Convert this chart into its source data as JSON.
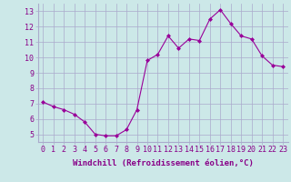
{
  "x": [
    0,
    1,
    2,
    3,
    4,
    5,
    6,
    7,
    8,
    9,
    10,
    11,
    12,
    13,
    14,
    15,
    16,
    17,
    18,
    19,
    20,
    21,
    22,
    23
  ],
  "y": [
    7.1,
    6.8,
    6.6,
    6.3,
    5.8,
    5.0,
    4.9,
    4.9,
    5.3,
    6.6,
    9.8,
    10.2,
    11.4,
    10.6,
    11.2,
    11.1,
    12.5,
    13.1,
    12.2,
    11.4,
    11.2,
    10.1,
    9.5,
    9.4
  ],
  "line_color": "#990099",
  "marker": "D",
  "marker_size": 2.0,
  "bg_color": "#cce8e8",
  "grid_color": "#aaaacc",
  "xlabel": "Windchill (Refroidissement éolien,°C)",
  "ylabel_ticks": [
    5,
    6,
    7,
    8,
    9,
    10,
    11,
    12,
    13
  ],
  "xtick_labels": [
    "0",
    "1",
    "2",
    "3",
    "4",
    "5",
    "6",
    "7",
    "8",
    "9",
    "10",
    "11",
    "12",
    "13",
    "14",
    "15",
    "16",
    "17",
    "18",
    "19",
    "20",
    "21",
    "22",
    "23"
  ],
  "ylim": [
    4.5,
    13.5
  ],
  "xlim": [
    -0.5,
    23.5
  ],
  "axis_fontsize": 6.5,
  "tick_fontsize": 6.0,
  "label_color": "#880088"
}
